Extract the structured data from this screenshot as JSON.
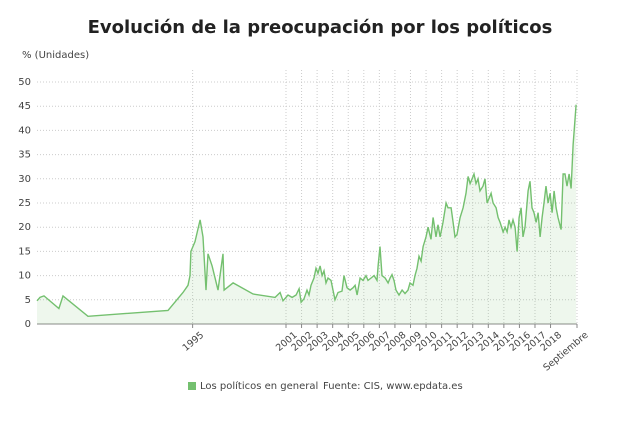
{
  "chart_data": {
    "type": "line",
    "title": "Evolución de la preocupación por los políticos",
    "y_label": "% (Unidades)",
    "source": "Fuente: CIS, www.epdata.es",
    "x": [
      1985.0,
      1985.19,
      1985.45,
      1986.41,
      1986.67,
      1988.28,
      1993.42,
      1994.38,
      1994.7,
      1994.83,
      1994.89,
      1995.15,
      1995.48,
      1995.67,
      1995.86,
      1995.99,
      1996.25,
      1996.63,
      1996.95,
      1997.02,
      1997.6,
      1998.88,
      2000.3,
      2000.62,
      2000.81,
      2001.13,
      2001.39,
      2001.65,
      2001.84,
      2001.97,
      2002.16,
      2002.35,
      2002.48,
      2002.61,
      2002.8,
      2002.93,
      2003.06,
      2003.19,
      2003.32,
      2003.44,
      2003.57,
      2003.7,
      2003.89,
      2004.02,
      2004.15,
      2004.34,
      2004.6,
      2004.73,
      2004.92,
      2005.12,
      2005.31,
      2005.44,
      2005.57,
      2005.76,
      2005.95,
      2006.14,
      2006.27,
      2006.47,
      2006.66,
      2006.85,
      2006.92,
      2007.04,
      2007.17,
      2007.37,
      2007.56,
      2007.69,
      2007.81,
      2007.94,
      2008.07,
      2008.26,
      2008.46,
      2008.65,
      2008.84,
      2008.97,
      2009.16,
      2009.29,
      2009.42,
      2009.55,
      2009.68,
      2009.81,
      2010.0,
      2010.13,
      2010.32,
      2010.45,
      2010.64,
      2010.77,
      2010.9,
      2011.09,
      2011.29,
      2011.41,
      2011.61,
      2011.74,
      2011.86,
      2011.99,
      2012.19,
      2012.38,
      2012.57,
      2012.7,
      2012.83,
      2012.96,
      2013.08,
      2013.21,
      2013.34,
      2013.47,
      2013.66,
      2013.79,
      2013.92,
      2014.05,
      2014.18,
      2014.31,
      2014.5,
      2014.63,
      2014.76,
      2014.95,
      2015.08,
      2015.21,
      2015.33,
      2015.46,
      2015.59,
      2015.72,
      2015.85,
      2015.98,
      2016.11,
      2016.23,
      2016.36,
      2016.56,
      2016.68,
      2016.81,
      2016.94,
      2017.07,
      2017.2,
      2017.33,
      2017.46,
      2017.58,
      2017.71,
      2017.84,
      2017.97,
      2018.1,
      2018.23,
      2018.36,
      2018.48,
      2018.68,
      2018.81,
      2018.93,
      2019.06,
      2019.19,
      2019.32,
      2019.45,
      2019.64
    ],
    "series": [
      {
        "name": "Los políticos en general",
        "color": "#74c06f",
        "values": [
          4.8,
          5.5,
          5.8,
          3.2,
          5.8,
          1.6,
          2.8,
          6.5,
          8,
          10,
          15,
          17,
          21.5,
          18,
          7,
          14.5,
          12,
          7,
          14.5,
          7,
          8.5,
          6.2,
          5.5,
          6.5,
          4.8,
          6,
          5.5,
          6,
          7.3,
          4.5,
          5.2,
          7,
          6,
          8,
          9.5,
          11.5,
          10.5,
          12,
          10,
          11,
          8.5,
          9.5,
          9,
          7,
          5,
          6.5,
          6.8,
          10,
          7.5,
          7,
          7.5,
          8,
          6,
          9.5,
          9,
          10,
          9,
          9.5,
          10,
          9,
          12,
          16,
          10,
          9.5,
          8.5,
          9.5,
          10.2,
          9,
          7,
          6,
          7,
          6.3,
          7,
          8.5,
          8,
          10,
          11.5,
          14,
          13,
          16,
          18,
          20,
          17.5,
          22,
          18,
          20.5,
          18,
          21,
          25,
          24,
          24,
          21,
          18,
          18.5,
          22,
          24,
          27,
          30.5,
          29,
          30,
          31,
          29,
          30,
          27.5,
          28.5,
          30,
          25,
          26,
          27,
          25,
          24,
          22,
          21,
          19,
          20,
          19,
          21.5,
          20,
          21.5,
          20,
          15,
          22,
          24,
          18,
          20,
          27.5,
          29.5,
          24,
          23,
          21,
          23,
          18,
          22,
          25,
          28.5,
          25,
          27,
          23,
          27.5,
          24,
          22,
          19.5,
          31,
          31,
          28.5,
          31,
          28,
          37,
          45.3
        ]
      }
    ],
    "xlim": [
      1985,
      2019.7
    ],
    "xticks": [
      1995,
      2001,
      2002,
      2003,
      2004,
      2005,
      2006,
      2007,
      2008,
      2009,
      2010,
      2011,
      2012,
      2013,
      2014,
      2015,
      2016,
      2017,
      2018,
      {
        "value": 2019.7,
        "label": "Septiembre"
      }
    ],
    "ylim": [
      0,
      50
    ],
    "yticks": [
      0,
      5,
      10,
      15,
      20,
      25,
      30,
      35,
      40,
      45,
      50
    ],
    "grid": true
  }
}
